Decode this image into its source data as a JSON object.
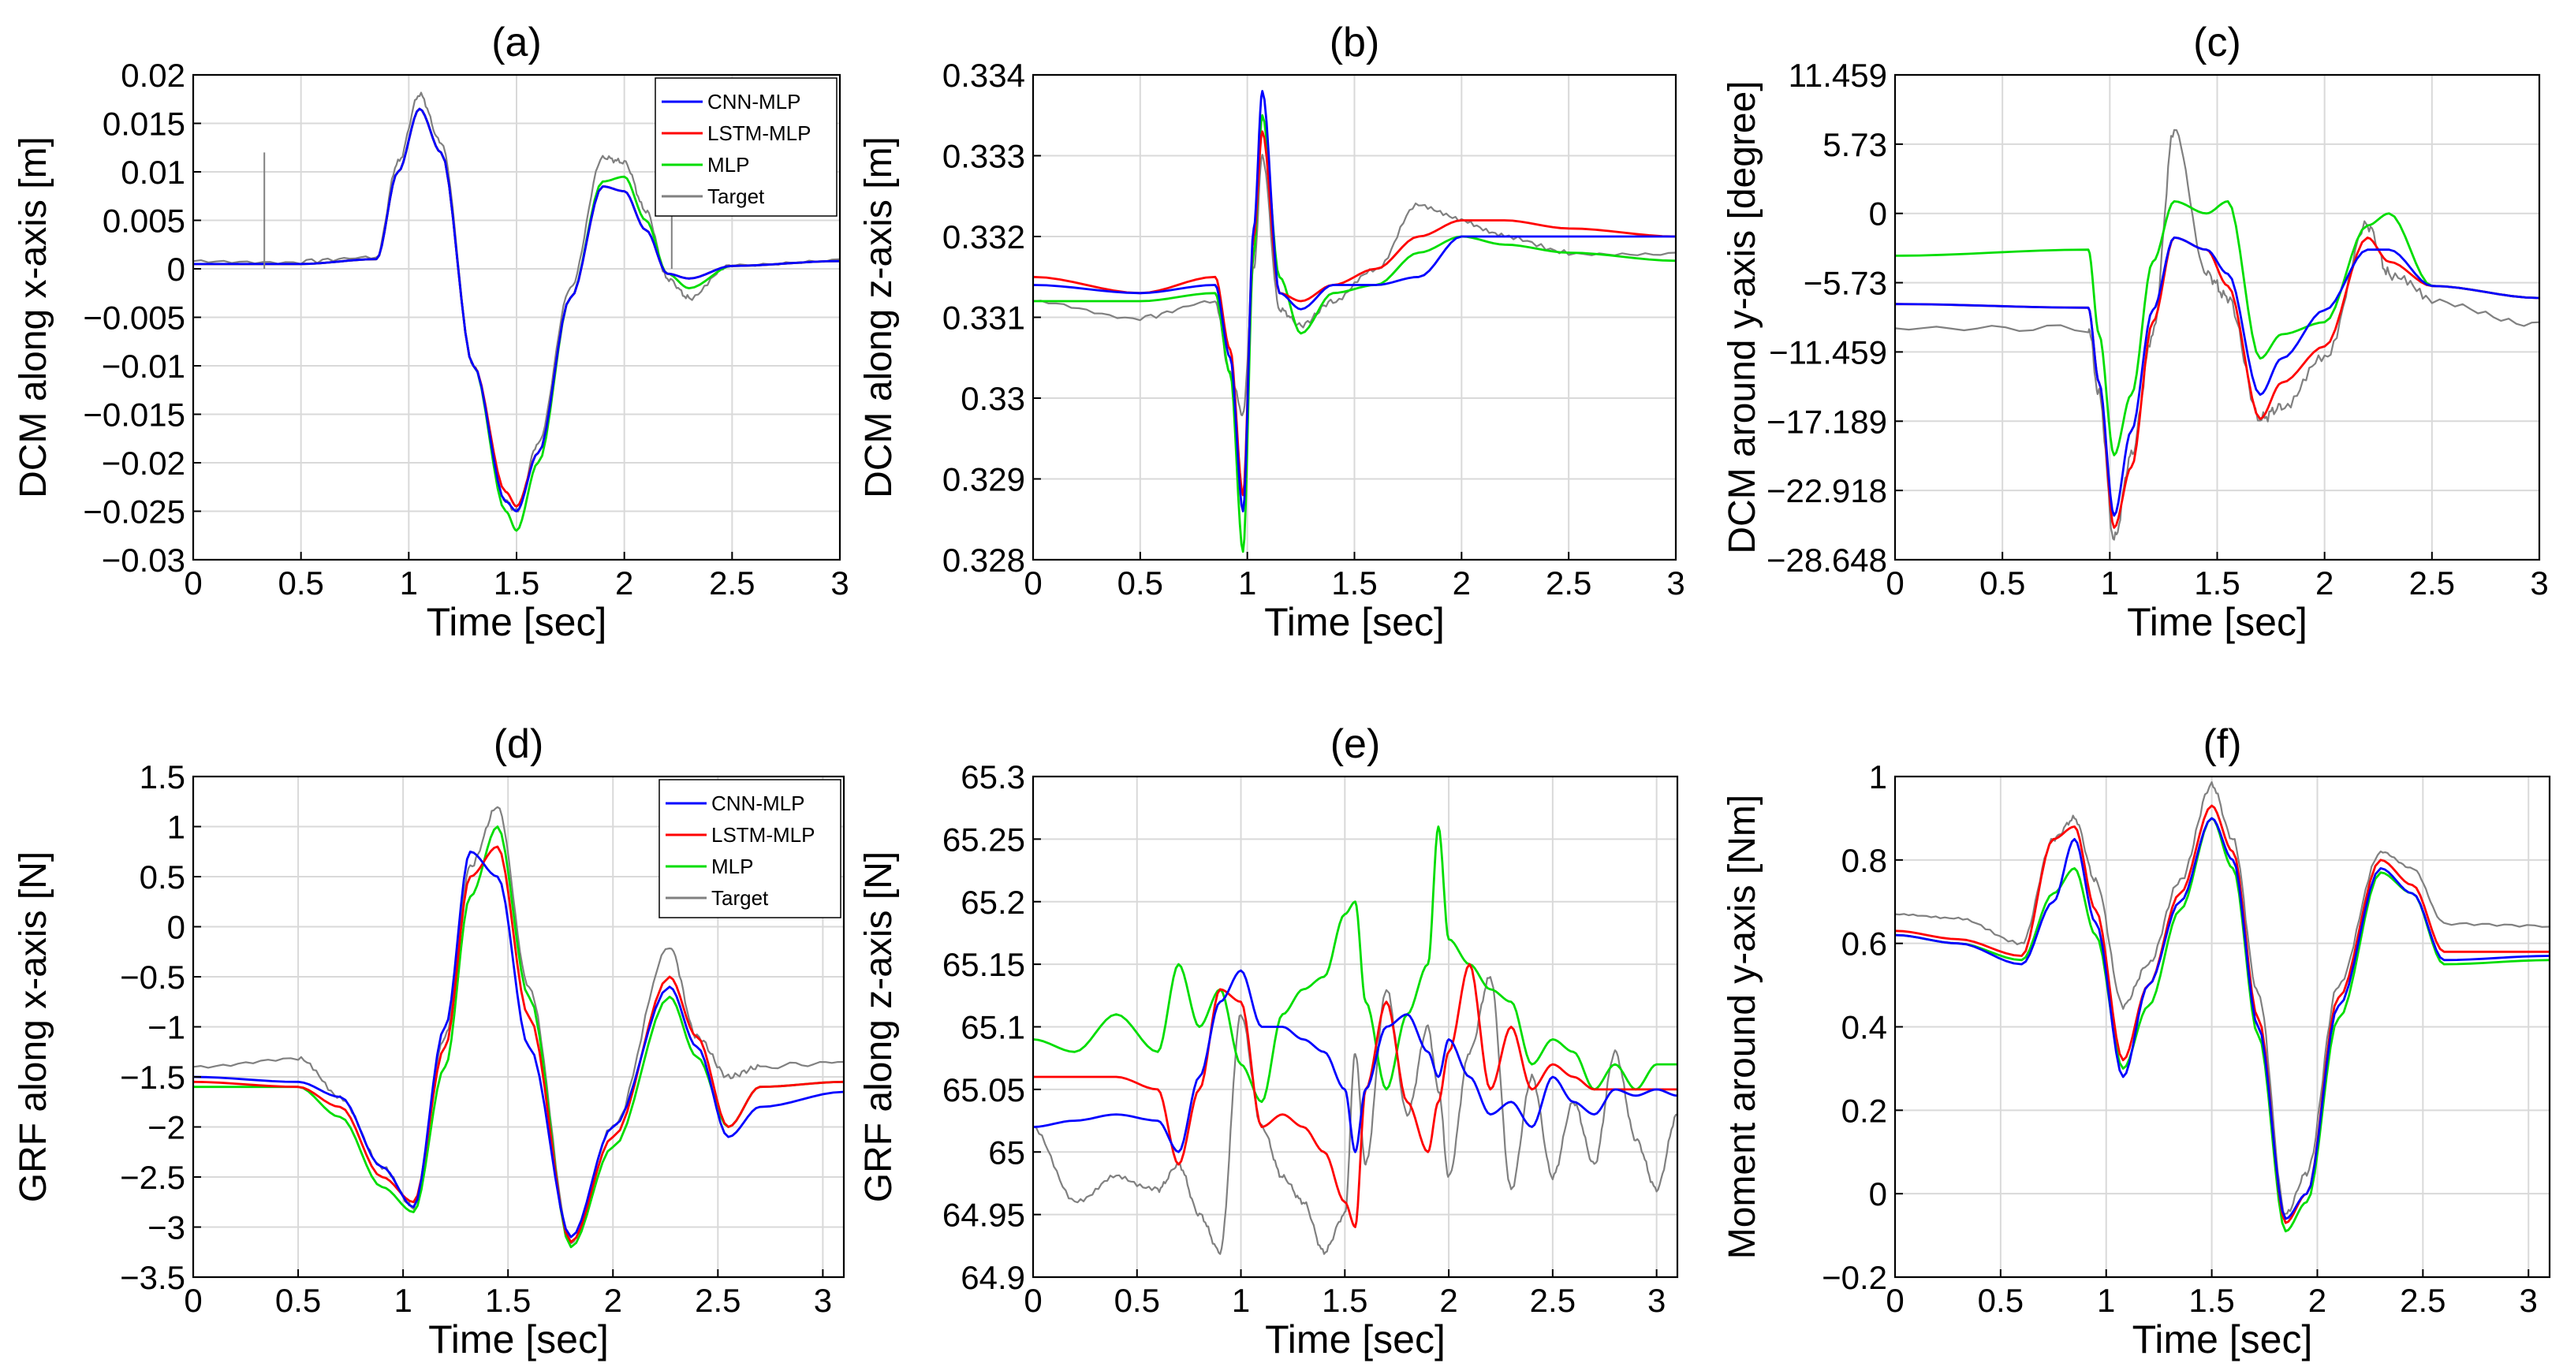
{
  "colors": {
    "cnn_mlp": "#0000ff",
    "lstm_mlp": "#ff0000",
    "mlp": "#00dd00",
    "target": "#808080",
    "target_dark": "#444444",
    "grid": "#d9d9d9"
  },
  "legend_labels": [
    "CNN-MLP",
    "LSTM-MLP",
    "MLP",
    "Target"
  ],
  "chart_data": [
    {
      "panel": "(a)",
      "type": "line",
      "title": "(a)",
      "xlabel": "Time [sec]",
      "ylabel": "DCM along x-axis [m]",
      "xlim": [
        0,
        3
      ],
      "ylim": [
        -0.03,
        0.02
      ],
      "xticks": [
        0,
        0.5,
        1,
        1.5,
        2,
        2.5,
        3
      ],
      "xtick_labels": [
        "0",
        "0.5",
        "1",
        "1.5",
        "2",
        "2.5",
        "3"
      ],
      "yticks": [
        -0.03,
        -0.025,
        -0.02,
        -0.015,
        -0.01,
        -0.005,
        0,
        0.005,
        0.01,
        0.015,
        0.02
      ],
      "ytick_labels": [
        "−0.03",
        "−0.025",
        "−0.02",
        "−0.015",
        "−0.01",
        "−0.005",
        "0",
        "0.005",
        "0.01",
        "0.015",
        "0.02"
      ],
      "grid": true,
      "legend": "top-right",
      "x": [
        0,
        0.5,
        0.85,
        0.95,
        1.05,
        1.15,
        1.3,
        1.45,
        1.5,
        1.6,
        1.75,
        1.9,
        2.0,
        2.1,
        2.2,
        2.3,
        2.5,
        3.0
      ],
      "series": [
        {
          "name": "CNN-MLP",
          "values": [
            0.0005,
            0.0005,
            0.001,
            0.01,
            0.0165,
            0.012,
            -0.01,
            -0.024,
            -0.025,
            -0.019,
            -0.003,
            0.0085,
            0.008,
            0.004,
            -0.0005,
            -0.001,
            0.0003,
            0.0008
          ]
        },
        {
          "name": "LSTM-MLP",
          "values": [
            0.0005,
            0.0005,
            0.001,
            0.01,
            0.0165,
            0.012,
            -0.01,
            -0.023,
            -0.0245,
            -0.019,
            -0.003,
            0.0085,
            0.008,
            0.004,
            -0.0005,
            -0.001,
            0.0003,
            0.0008
          ]
        },
        {
          "name": "MLP",
          "values": [
            0.0005,
            0.0005,
            0.001,
            0.01,
            0.0165,
            0.012,
            -0.01,
            -0.025,
            -0.027,
            -0.02,
            -0.003,
            0.009,
            0.0095,
            0.005,
            -0.0005,
            -0.002,
            0.0003,
            0.0008
          ]
        },
        {
          "name": "Target",
          "values": [
            0.0008,
            0.0008,
            0.0012,
            0.011,
            0.018,
            0.013,
            -0.01,
            -0.024,
            -0.025,
            -0.018,
            -0.002,
            0.0115,
            0.011,
            0.006,
            -0.001,
            -0.003,
            0.0005,
            0.001
          ]
        }
      ],
      "spikes": [
        {
          "x": 0.33,
          "value": 0.012
        },
        {
          "x": 2.22,
          "value": 0.01
        }
      ]
    },
    {
      "panel": "(b)",
      "type": "line",
      "title": "(b)",
      "xlabel": "Time [sec]",
      "ylabel": "DCM along z-axis [m]",
      "xlim": [
        0,
        3
      ],
      "ylim": [
        0.328,
        0.334
      ],
      "xticks": [
        0,
        0.5,
        1,
        1.5,
        2,
        2.5,
        3
      ],
      "xtick_labels": [
        "0",
        "0.5",
        "1",
        "1.5",
        "2",
        "2.5",
        "3"
      ],
      "yticks": [
        0.328,
        0.329,
        0.33,
        0.331,
        0.332,
        0.333,
        0.334
      ],
      "ytick_labels": [
        "0.328",
        "0.329",
        "0.33",
        "0.331",
        "0.332",
        "0.333",
        "0.334"
      ],
      "grid": true,
      "x": [
        0,
        0.5,
        0.85,
        0.92,
        0.98,
        1.03,
        1.07,
        1.15,
        1.25,
        1.4,
        1.6,
        1.8,
        2.0,
        2.2,
        2.5,
        3.0
      ],
      "series": [
        {
          "name": "CNN-MLP",
          "values": [
            0.3314,
            0.3313,
            0.3314,
            0.3305,
            0.3286,
            0.3321,
            0.3338,
            0.3313,
            0.3311,
            0.3314,
            0.3314,
            0.3315,
            0.332,
            0.332,
            0.332,
            0.332
          ]
        },
        {
          "name": "LSTM-MLP",
          "values": [
            0.3315,
            0.3313,
            0.3315,
            0.3306,
            0.3288,
            0.332,
            0.3333,
            0.3313,
            0.3312,
            0.3314,
            0.3316,
            0.332,
            0.3322,
            0.3322,
            0.3321,
            0.332
          ]
        },
        {
          "name": "MLP",
          "values": [
            0.3312,
            0.3312,
            0.3313,
            0.3303,
            0.3281,
            0.3318,
            0.3335,
            0.3315,
            0.3308,
            0.3313,
            0.3314,
            0.3318,
            0.332,
            0.3319,
            0.3318,
            0.3317
          ]
        },
        {
          "name": "Target",
          "values": [
            0.3312,
            0.331,
            0.3312,
            0.3303,
            0.3298,
            0.3316,
            0.333,
            0.3311,
            0.3309,
            0.3312,
            0.3316,
            0.3324,
            0.3322,
            0.332,
            0.3318,
            0.3318
          ]
        }
      ]
    },
    {
      "panel": "(c)",
      "type": "line",
      "title": "(c)",
      "xlabel": "Time [sec]",
      "ylabel": "DCM around y-axis [degree]",
      "xlim": [
        0,
        3
      ],
      "ylim": [
        -28.648,
        11.459
      ],
      "xticks": [
        0,
        0.5,
        1,
        1.5,
        2,
        2.5,
        3
      ],
      "xtick_labels": [
        "0",
        "0.5",
        "1",
        "1.5",
        "2",
        "2.5",
        "3"
      ],
      "yticks": [
        -28.648,
        -22.918,
        -17.189,
        -11.459,
        -5.73,
        0,
        5.73,
        11.459
      ],
      "ytick_labels": [
        "−28.648",
        "−22.918",
        "−17.189",
        "−11.459",
        "−5.73",
        "0",
        "5.73",
        "11.459"
      ],
      "grid": true,
      "x": [
        0,
        0.9,
        0.95,
        1.02,
        1.1,
        1.2,
        1.3,
        1.45,
        1.55,
        1.7,
        1.8,
        2.0,
        2.2,
        2.3,
        2.5,
        3.0
      ],
      "series": [
        {
          "name": "CNN-MLP",
          "values": [
            -7.5,
            -7.8,
            -14,
            -25,
            -18,
            -8,
            -2,
            -3,
            -5,
            -15,
            -12,
            -8,
            -3,
            -3,
            -6,
            -7
          ]
        },
        {
          "name": "LSTM-MLP",
          "values": [
            -7.5,
            -7.8,
            -14,
            -26,
            -21,
            -9,
            -2,
            -3,
            -6,
            -17,
            -14,
            -11,
            -2,
            -4,
            -6,
            -7
          ]
        },
        {
          "name": "MLP",
          "values": [
            -3.5,
            -3,
            -10,
            -20,
            -15,
            -4,
            1,
            0,
            1,
            -12,
            -10,
            -9,
            -1,
            0,
            -6,
            -7
          ]
        },
        {
          "name": "Target",
          "values": [
            -9.5,
            -9.5,
            -15,
            -27,
            -20,
            -10,
            7,
            -5,
            -7,
            -17,
            -16,
            -12,
            -1,
            -5,
            -7,
            -9
          ]
        }
      ]
    },
    {
      "panel": "(d)",
      "type": "line",
      "title": "(d)",
      "xlabel": "Time [sec]",
      "ylabel": "GRF along x-axis [N]",
      "xlim": [
        0,
        3.1
      ],
      "ylim": [
        -3.5,
        1.5
      ],
      "xticks": [
        0,
        0.5,
        1,
        1.5,
        2,
        2.5,
        3
      ],
      "xtick_labels": [
        "0",
        "0.5",
        "1",
        "1.5",
        "2",
        "2.5",
        "3"
      ],
      "yticks": [
        -3.5,
        -3,
        -2.5,
        -2,
        -1.5,
        -1,
        -0.5,
        0,
        0.5,
        1,
        1.5
      ],
      "ytick_labels": [
        "−3.5",
        "−3",
        "−2.5",
        "−2",
        "−1.5",
        "−1",
        "−0.5",
        "0",
        "0.5",
        "1",
        "1.5"
      ],
      "grid": true,
      "legend": "top-right",
      "x": [
        0,
        0.5,
        0.7,
        0.9,
        1.05,
        1.2,
        1.32,
        1.45,
        1.6,
        1.8,
        2.0,
        2.27,
        2.4,
        2.55,
        2.7,
        3.1
      ],
      "series": [
        {
          "name": "CNN-MLP",
          "values": [
            -1.5,
            -1.55,
            -1.7,
            -2.4,
            -2.8,
            -1.0,
            0.75,
            0.5,
            -1.2,
            -3.1,
            -2.0,
            -0.6,
            -1.2,
            -2.1,
            -1.8,
            -1.65
          ]
        },
        {
          "name": "LSTM-MLP",
          "values": [
            -1.55,
            -1.6,
            -1.8,
            -2.5,
            -2.75,
            -1.2,
            0.5,
            0.8,
            -0.9,
            -3.15,
            -2.1,
            -0.5,
            -1.1,
            -2.0,
            -1.6,
            -1.55
          ]
        },
        {
          "name": "MLP",
          "values": [
            -1.6,
            -1.6,
            -1.9,
            -2.6,
            -2.85,
            -1.4,
            0.3,
            1.0,
            -0.7,
            -3.2,
            -2.2,
            -0.7,
            -1.3,
            -2.0,
            -1.6,
            -1.55
          ]
        },
        {
          "name": "Target",
          "values": [
            -1.4,
            -1.3,
            -1.7,
            -2.4,
            -2.8,
            -1.1,
            0.6,
            1.2,
            -0.6,
            -3.15,
            -2.0,
            -0.2,
            -1.1,
            -1.5,
            -1.4,
            -1.35
          ]
        }
      ]
    },
    {
      "panel": "(e)",
      "type": "line",
      "title": "(e)",
      "xlabel": "Time [sec]",
      "ylabel": "GRF along z-axis [N]",
      "xlim": [
        0,
        3.1
      ],
      "ylim": [
        64.9,
        65.3
      ],
      "xticks": [
        0,
        0.5,
        1,
        1.5,
        2,
        2.5,
        3
      ],
      "xtick_labels": [
        "0",
        "0.5",
        "1",
        "1.5",
        "2",
        "2.5",
        "3"
      ],
      "yticks": [
        64.9,
        64.95,
        65,
        65.05,
        65.1,
        65.15,
        65.2,
        65.25,
        65.3
      ],
      "ytick_labels": [
        "64.9",
        "64.95",
        "65",
        "65.05",
        "65.1",
        "65.15",
        "65.2",
        "65.25",
        "65.3"
      ],
      "grid": true,
      "x": [
        0,
        0.2,
        0.4,
        0.6,
        0.7,
        0.8,
        0.9,
        1.0,
        1.1,
        1.2,
        1.3,
        1.4,
        1.5,
        1.55,
        1.6,
        1.7,
        1.8,
        1.9,
        1.95,
        2.0,
        2.1,
        2.2,
        2.3,
        2.4,
        2.5,
        2.6,
        2.7,
        2.8,
        2.9,
        3.0,
        3.1
      ],
      "series": [
        {
          "name": "CNN-MLP",
          "values": [
            65.02,
            65.025,
            65.03,
            65.025,
            65.0,
            65.06,
            65.12,
            65.145,
            65.1,
            65.1,
            65.09,
            65.08,
            65.05,
            65.0,
            65.05,
            65.1,
            65.11,
            65.08,
            65.06,
            65.09,
            65.06,
            65.03,
            65.04,
            65.02,
            65.06,
            65.04,
            65.03,
            65.05,
            65.045,
            65.05,
            65.045
          ]
        },
        {
          "name": "LSTM-MLP",
          "values": [
            65.06,
            65.06,
            65.06,
            65.05,
            64.99,
            65.05,
            65.13,
            65.12,
            65.02,
            65.03,
            65.02,
            65.0,
            64.96,
            64.94,
            65.05,
            65.12,
            65.04,
            65.0,
            65.04,
            65.08,
            65.15,
            65.05,
            65.1,
            65.05,
            65.07,
            65.06,
            65.05,
            65.05,
            65.05,
            65.05,
            65.05
          ]
        },
        {
          "name": "MLP",
          "values": [
            65.09,
            65.08,
            65.11,
            65.08,
            65.15,
            65.1,
            65.13,
            65.07,
            65.04,
            65.11,
            65.13,
            65.14,
            65.19,
            65.2,
            65.12,
            65.05,
            65.11,
            65.15,
            65.26,
            65.17,
            65.15,
            65.13,
            65.12,
            65.07,
            65.09,
            65.08,
            65.05,
            65.07,
            65.05,
            65.07,
            65.07
          ]
        },
        {
          "name": "Target",
          "values": [
            65.02,
            64.96,
            64.98,
            64.97,
            64.99,
            64.95,
            64.92,
            65.11,
            65.02,
            64.98,
            64.96,
            64.92,
            64.95,
            65.08,
            64.99,
            65.13,
            65.03,
            65.1,
            65.05,
            64.98,
            65.08,
            65.14,
            64.97,
            65.06,
            64.98,
            65.04,
            64.99,
            65.08,
            65.01,
            64.97,
            65.03
          ]
        }
      ]
    },
    {
      "panel": "(f)",
      "type": "line",
      "title": "(f)",
      "xlabel": "Time [sec]",
      "ylabel": "Moment around y-axis [Nm]",
      "xlim": [
        0,
        3.1
      ],
      "ylim": [
        -0.2,
        1.0
      ],
      "xticks": [
        0,
        0.5,
        1,
        1.5,
        2,
        2.5,
        3
      ],
      "xtick_labels": [
        "0",
        "0.5",
        "1",
        "1.5",
        "2",
        "2.5",
        "3"
      ],
      "yticks": [
        -0.2,
        0,
        0.2,
        0.4,
        0.6,
        0.8,
        1
      ],
      "ytick_labels": [
        "−0.2",
        "0",
        "0.2",
        "0.4",
        "0.6",
        "0.8",
        "1"
      ],
      "grid": true,
      "x": [
        0,
        0.3,
        0.6,
        0.75,
        0.85,
        0.95,
        1.08,
        1.2,
        1.35,
        1.5,
        1.6,
        1.72,
        1.85,
        1.95,
        2.1,
        2.3,
        2.45,
        2.6,
        3.1
      ],
      "series": [
        {
          "name": "CNN-MLP",
          "values": [
            0.62,
            0.6,
            0.55,
            0.7,
            0.85,
            0.65,
            0.28,
            0.5,
            0.7,
            0.9,
            0.8,
            0.4,
            -0.06,
            0.0,
            0.45,
            0.78,
            0.72,
            0.56,
            0.57
          ]
        },
        {
          "name": "LSTM-MLP",
          "values": [
            0.63,
            0.61,
            0.57,
            0.85,
            0.88,
            0.68,
            0.32,
            0.5,
            0.72,
            0.93,
            0.82,
            0.42,
            -0.07,
            0.0,
            0.47,
            0.8,
            0.74,
            0.58,
            0.58
          ]
        },
        {
          "name": "MLP",
          "values": [
            0.62,
            0.6,
            0.56,
            0.72,
            0.78,
            0.62,
            0.3,
            0.45,
            0.68,
            0.9,
            0.78,
            0.38,
            -0.09,
            -0.02,
            0.42,
            0.77,
            0.72,
            0.55,
            0.56
          ]
        },
        {
          "name": "Target",
          "values": [
            0.67,
            0.66,
            0.6,
            0.85,
            0.9,
            0.75,
            0.45,
            0.55,
            0.75,
            0.98,
            0.85,
            0.48,
            -0.05,
            0.05,
            0.5,
            0.82,
            0.78,
            0.65,
            0.64
          ]
        }
      ]
    }
  ]
}
